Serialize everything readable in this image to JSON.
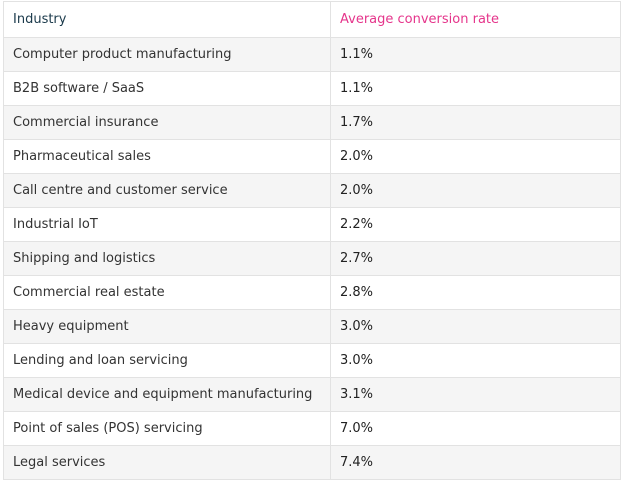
{
  "table": {
    "header": [
      "Industry",
      "Average conversion rate"
    ],
    "rows": [
      [
        "Computer product manufacturing",
        "1.1%"
      ],
      [
        "B2B software / SaaS",
        "1.1%"
      ],
      [
        "Commercial insurance",
        "1.7%"
      ],
      [
        "Pharmaceutical sales",
        "2.0%"
      ],
      [
        "Call centre and customer service",
        "2.0%"
      ],
      [
        "Industrial IoT",
        "2.2%"
      ],
      [
        "Shipping and logistics",
        "2.7%"
      ],
      [
        "Commercial real estate",
        "2.8%"
      ],
      [
        "Heavy equipment",
        "3.0%"
      ],
      [
        "Lending and loan servicing",
        "3.0%"
      ],
      [
        "Medical device and equipment manufacturing",
        "3.1%"
      ],
      [
        "Point of sales (POS) servicing",
        "7.0%"
      ],
      [
        "Legal services",
        "7.4%"
      ]
    ]
  }
}
